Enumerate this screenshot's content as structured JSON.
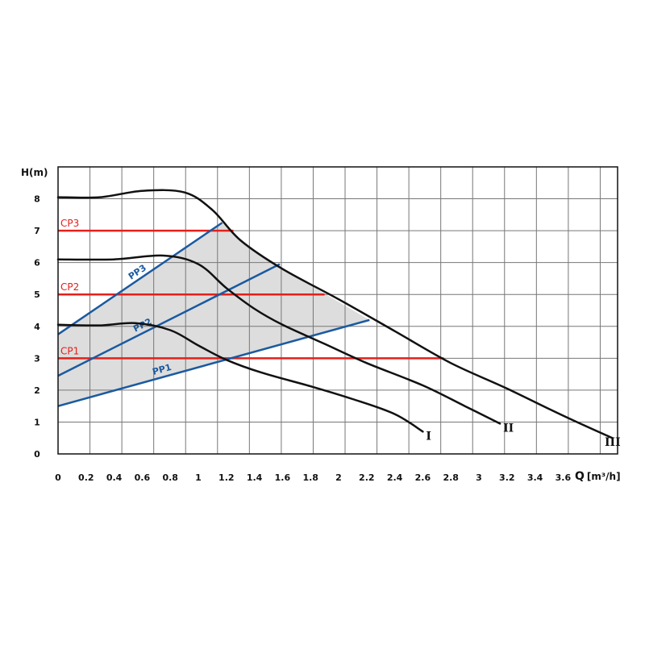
{
  "chart_data": {
    "type": "line",
    "ylabel": "H(m)",
    "xlabel_letter": "Q",
    "xlabel_unit": "[m³/h]",
    "xlim": [
      0,
      4.0
    ],
    "ylim": [
      0,
      9
    ],
    "grid": true,
    "x_ticks": [
      "0",
      "0.2",
      "0.4",
      "0.6",
      "0.8",
      "1",
      "1.2",
      "1.4",
      "1.6",
      "1.8",
      "2",
      "2.2",
      "2.4",
      "2.6",
      "2.8",
      "3",
      "3.2",
      "3.4",
      "3.6"
    ],
    "x_tick_values": [
      0,
      0.2,
      0.4,
      0.6,
      0.8,
      1,
      1.2,
      1.4,
      1.6,
      1.8,
      2,
      2.2,
      2.4,
      2.6,
      2.8,
      3,
      3.2,
      3.4,
      3.6
    ],
    "y_ticks": [
      "0",
      "1",
      "2",
      "3",
      "4",
      "5",
      "6",
      "7",
      "8"
    ],
    "y_tick_values": [
      0,
      1,
      2,
      3,
      4,
      5,
      6,
      7,
      8
    ],
    "colors": {
      "curve": "#111111",
      "cp": "#e3201b",
      "pp": "#1a5aa0",
      "region": "#dddddd",
      "grid": "#777777"
    },
    "speed_curves": [
      {
        "label": "I",
        "points": [
          [
            0,
            4.05
          ],
          [
            0.3,
            4.03
          ],
          [
            0.55,
            4.1
          ],
          [
            0.8,
            3.88
          ],
          [
            1.0,
            3.4
          ],
          [
            1.2,
            2.95
          ],
          [
            1.45,
            2.55
          ],
          [
            1.8,
            2.12
          ],
          [
            2.1,
            1.72
          ],
          [
            2.4,
            1.25
          ],
          [
            2.6,
            0.7
          ]
        ]
      },
      {
        "label": "II",
        "points": [
          [
            0,
            6.1
          ],
          [
            0.4,
            6.1
          ],
          [
            0.75,
            6.22
          ],
          [
            1.0,
            5.95
          ],
          [
            1.2,
            5.2
          ],
          [
            1.4,
            4.55
          ],
          [
            1.6,
            4.05
          ],
          [
            1.9,
            3.45
          ],
          [
            2.2,
            2.85
          ],
          [
            2.6,
            2.15
          ],
          [
            2.9,
            1.5
          ],
          [
            3.15,
            0.95
          ]
        ]
      },
      {
        "label": "III",
        "points": [
          [
            0,
            8.05
          ],
          [
            0.3,
            8.05
          ],
          [
            0.6,
            8.25
          ],
          [
            0.9,
            8.2
          ],
          [
            1.1,
            7.65
          ],
          [
            1.3,
            6.7
          ],
          [
            1.6,
            5.8
          ],
          [
            2.0,
            4.85
          ],
          [
            2.4,
            3.85
          ],
          [
            2.8,
            2.85
          ],
          [
            3.2,
            2.05
          ],
          [
            3.6,
            1.2
          ],
          [
            3.95,
            0.5
          ]
        ]
      }
    ],
    "constant_pressure": [
      {
        "name": "CP3",
        "y": 7,
        "x_end": 1.25
      },
      {
        "name": "CP2",
        "y": 5,
        "x_end": 1.9
      },
      {
        "name": "CP1",
        "y": 3,
        "x_end": 2.75
      }
    ],
    "proportional_pressure": [
      {
        "name": "PP3",
        "points": [
          [
            0,
            3.75
          ],
          [
            1.17,
            7.25
          ]
        ]
      },
      {
        "name": "PP2",
        "points": [
          [
            0,
            2.45
          ],
          [
            1.58,
            5.95
          ]
        ]
      },
      {
        "name": "PP1",
        "points": [
          [
            0,
            1.5
          ],
          [
            2.22,
            4.2
          ]
        ]
      }
    ],
    "region_polygon": [
      [
        0,
        1.5
      ],
      [
        2.22,
        4.2
      ],
      [
        1.6,
        5.8
      ],
      [
        1.3,
        6.7
      ],
      [
        1.17,
        7.25
      ],
      [
        0,
        3.75
      ]
    ]
  }
}
